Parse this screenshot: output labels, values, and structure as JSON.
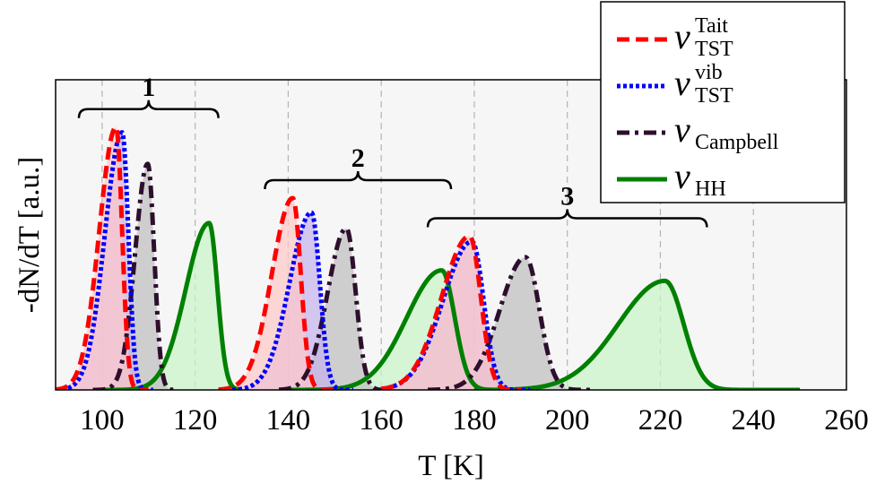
{
  "chart_data": {
    "type": "area",
    "xlabel": "T [K]",
    "ylabel": "-dN/dT [a.u.]",
    "xlim": [
      90,
      260
    ],
    "ylim": [
      0,
      1.18
    ],
    "x_ticks": [
      "100",
      "120",
      "140",
      "160",
      "180",
      "200",
      "220",
      "240",
      "260"
    ],
    "grid": "vertical dashed",
    "legend_position": "top-right",
    "legend": [
      {
        "main": "ν",
        "sup": "Tait",
        "sub": "TST",
        "color": "#ff0000",
        "style": "dashed"
      },
      {
        "main": "ν",
        "sup": "vib",
        "sub": "TST",
        "color": "#0000ff",
        "style": "dotted"
      },
      {
        "main": "ν",
        "sup": "",
        "sub": "Campbell",
        "color": "#2d0f2d",
        "style": "dash-dot"
      },
      {
        "main": "ν",
        "sup": "",
        "sub": "HH",
        "color": "#008000",
        "style": "solid"
      }
    ],
    "groups": [
      {
        "label": "1",
        "x_range": [
          95,
          125
        ]
      },
      {
        "label": "2",
        "x_range": [
          135,
          175
        ]
      },
      {
        "label": "3",
        "x_range": [
          170,
          230
        ]
      }
    ],
    "series": [
      {
        "name": "Tait TST",
        "color": "#ff0000",
        "fill": "#ffc8c8",
        "peaks": [
          {
            "group": "1",
            "x_peak": 103.0,
            "height": 1.0,
            "left_width": 3.6,
            "right_width": 1.3,
            "x_start": 90,
            "x_end": 110
          },
          {
            "group": "2",
            "x_peak": 141.0,
            "height": 0.73,
            "left_width": 4.5,
            "right_width": 1.7,
            "x_start": 125,
            "x_end": 150
          },
          {
            "group": "3",
            "x_peak": 179.0,
            "height": 0.585,
            "left_width": 6.0,
            "right_width": 2.4,
            "x_start": 160,
            "x_end": 190
          }
        ]
      },
      {
        "name": "vib TST",
        "color": "#0000ff",
        "fill": "#c4b2ec",
        "peaks": [
          {
            "group": "1",
            "x_peak": 104.3,
            "height": 0.98,
            "left_width": 3.7,
            "right_width": 1.35,
            "x_start": 90,
            "x_end": 111
          },
          {
            "group": "2",
            "x_peak": 145.0,
            "height": 0.675,
            "left_width": 4.7,
            "right_width": 1.8,
            "x_start": 128,
            "x_end": 154
          },
          {
            "group": "3",
            "x_peak": 179.5,
            "height": 0.565,
            "left_width": 6.2,
            "right_width": 2.5,
            "x_start": 160,
            "x_end": 192
          }
        ]
      },
      {
        "name": "Campbell",
        "color": "#2d0f2d",
        "fill": "#bdbdbd",
        "peaks": [
          {
            "group": "1",
            "x_peak": 109.8,
            "height": 0.86,
            "left_width": 2.7,
            "right_width": 1.4,
            "x_start": 98,
            "x_end": 116
          },
          {
            "group": "2",
            "x_peak": 152.5,
            "height": 0.615,
            "left_width": 4.0,
            "right_width": 2.0,
            "x_start": 138,
            "x_end": 162
          },
          {
            "group": "3",
            "x_peak": 191.0,
            "height": 0.505,
            "left_width": 5.5,
            "right_width": 3.0,
            "x_start": 170,
            "x_end": 205
          }
        ]
      },
      {
        "name": "HH",
        "color": "#008000",
        "fill": "#c8f5c8",
        "peaks": [
          {
            "group": "1",
            "x_peak": 123.0,
            "height": 0.635,
            "left_width": 5.0,
            "right_width": 1.8,
            "x_start": 100,
            "x_end": 130
          },
          {
            "group": "2",
            "x_peak": 173.0,
            "height": 0.455,
            "left_width": 7.5,
            "right_width": 2.8,
            "x_start": 140,
            "x_end": 190
          },
          {
            "group": "3",
            "x_peak": 221.0,
            "height": 0.415,
            "left_width": 10.0,
            "right_width": 4.0,
            "x_start": 180,
            "x_end": 250
          }
        ]
      }
    ]
  }
}
